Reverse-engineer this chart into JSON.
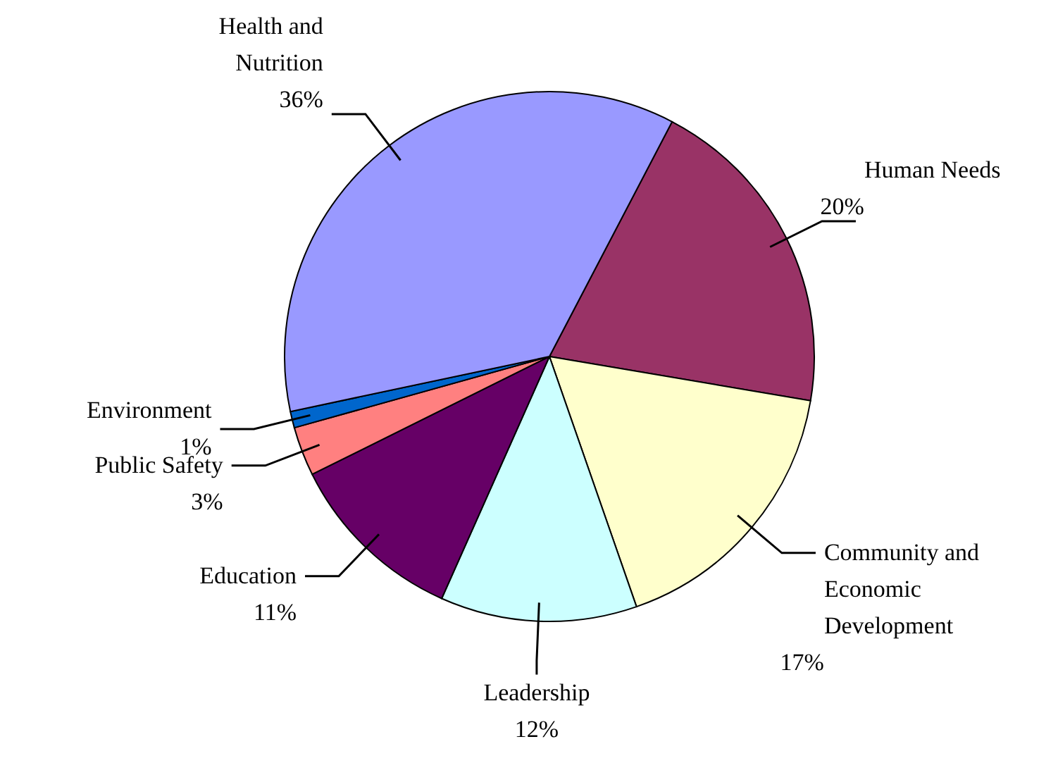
{
  "chart_data": {
    "type": "pie",
    "categories": [
      "Human Needs",
      "Community and Economic Development",
      "Leadership",
      "Education",
      "Public Safety",
      "Environment",
      "Health and Nutrition"
    ],
    "values": [
      20,
      17,
      12,
      11,
      3,
      1,
      36
    ],
    "value_labels": [
      "20%",
      "17%",
      "12%",
      "11%",
      "3%",
      "1%",
      "36%"
    ],
    "colors": [
      "#993366",
      "#ffffcc",
      "#ccffff",
      "#660066",
      "#ff8080",
      "#0066cc",
      "#9999ff"
    ],
    "legend": false
  }
}
